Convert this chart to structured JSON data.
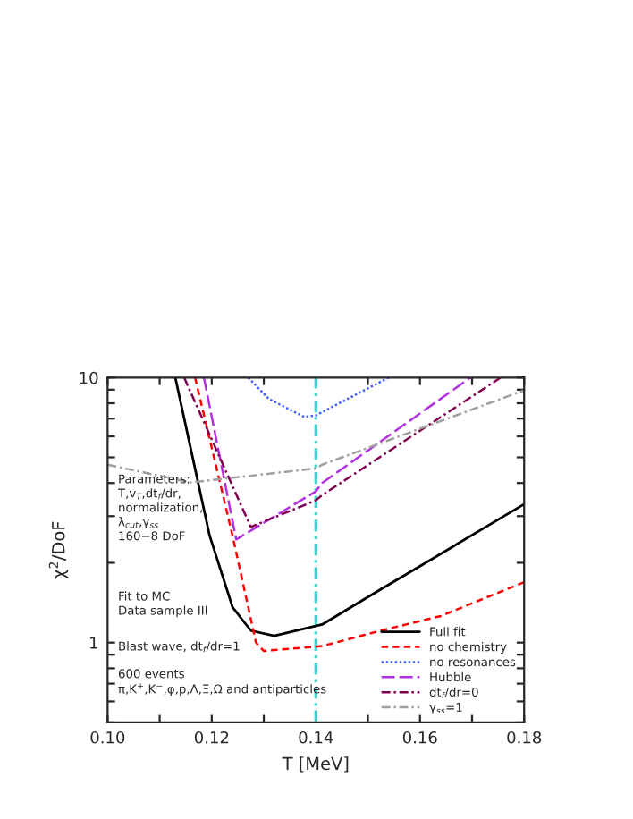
{
  "chart_data": {
    "type": "line",
    "xlabel": "T [MeV]",
    "ylabel": "χ$^{2}$/DoF",
    "log": "y",
    "xlim": [
      0.1,
      0.18
    ],
    "ylim": [
      0.5,
      10
    ],
    "xticks": [
      {
        "value": 0.1,
        "label": "0.10"
      },
      {
        "value": 0.11,
        "label": null
      },
      {
        "value": 0.12,
        "label": "0.12"
      },
      {
        "value": 0.13,
        "label": null
      },
      {
        "value": 0.14,
        "label": "0.14"
      },
      {
        "value": 0.15,
        "label": null
      },
      {
        "value": 0.16,
        "label": "0.16"
      },
      {
        "value": 0.17,
        "label": null
      },
      {
        "value": 0.18,
        "label": "0.18"
      }
    ],
    "yticks": [
      {
        "value": 0.5,
        "label": null
      },
      {
        "value": 0.6,
        "label": null
      },
      {
        "value": 0.7,
        "label": null
      },
      {
        "value": 0.8,
        "label": null
      },
      {
        "value": 0.9,
        "label": null
      },
      1,
      {
        "value": 2,
        "label": null
      },
      {
        "value": 3,
        "label": null
      },
      {
        "value": 4,
        "label": null
      },
      {
        "value": 5,
        "label": null
      },
      {
        "value": 6,
        "label": null
      },
      {
        "value": 7,
        "label": null
      },
      {
        "value": 8,
        "label": null
      },
      {
        "value": 9,
        "label": null
      },
      10
    ],
    "legend": "lower right",
    "grid": false,
    "series": [
      {
        "name": "Full fit",
        "color": "#000000",
        "line_style": "solid",
        "x": [
          0.113,
          0.1196,
          0.124,
          0.1275,
          0.132,
          0.1412,
          0.1525,
          0.1584,
          0.18
        ],
        "values": [
          10,
          2.53,
          1.36,
          1.11,
          1.06,
          1.17,
          1.59,
          1.86,
          3.33
        ]
      },
      {
        "name": "no chemistry",
        "color": "#ff0000",
        "line_style": "dashed",
        "x": [
          0.1168,
          0.124,
          0.1285,
          0.13,
          0.1412,
          0.1525,
          0.164,
          0.18
        ],
        "values": [
          10,
          2.53,
          1.0,
          0.93,
          0.97,
          1.11,
          1.26,
          1.69
        ]
      },
      {
        "name": "no resonances",
        "color": "#4060ff",
        "line_style": "dotted",
        "x": [
          0.127,
          0.131,
          0.1378,
          0.14,
          0.154
        ],
        "values": [
          10,
          8.3,
          7.1,
          7.2,
          10
        ]
      },
      {
        "name": "Hubble",
        "color": "#b030e0",
        "line_style": "longdash",
        "x": [
          0.1185,
          0.1247,
          0.14,
          0.1412,
          0.1697
        ],
        "values": [
          10,
          2.45,
          3.72,
          4.0,
          10
        ]
      },
      {
        "name": "dt$_{f}$/dr=0",
        "color": "#800050",
        "line_style": "dashdot",
        "x": [
          0.1147,
          0.1275,
          0.14,
          0.1412,
          0.1755
        ],
        "values": [
          10,
          2.73,
          3.44,
          3.6,
          10
        ]
      },
      {
        "name": "γ$_{ss}$=1",
        "color": "#a0a0a0",
        "line_style": "dashdot",
        "x": [
          0.1,
          0.116,
          0.14,
          0.1412,
          0.18
        ],
        "values": [
          4.69,
          4.02,
          4.54,
          4.69,
          8.95
        ]
      }
    ],
    "ref_lines": [
      {
        "axis": "x",
        "value": 0.14,
        "label": null,
        "color": "#40d0d0",
        "line_style": "dashdot"
      }
    ],
    "annotations": [
      {
        "text": "Parameters:\nT,v$_{T}$,dt$_{f}$/dr,\nnormalization,\nλ$_{cut}$,γ$_{ss}$\n160−8 DoF"
      },
      {
        "text": "Fit to MC\nData sample III"
      },
      {
        "text": "Blast wave, dt$_{f}$/dr=1"
      },
      {
        "text": "600 events\nπ,K$^{+}$,K$^{−}$,φ,p,Λ,Ξ,Ω and antiparticles"
      }
    ]
  }
}
